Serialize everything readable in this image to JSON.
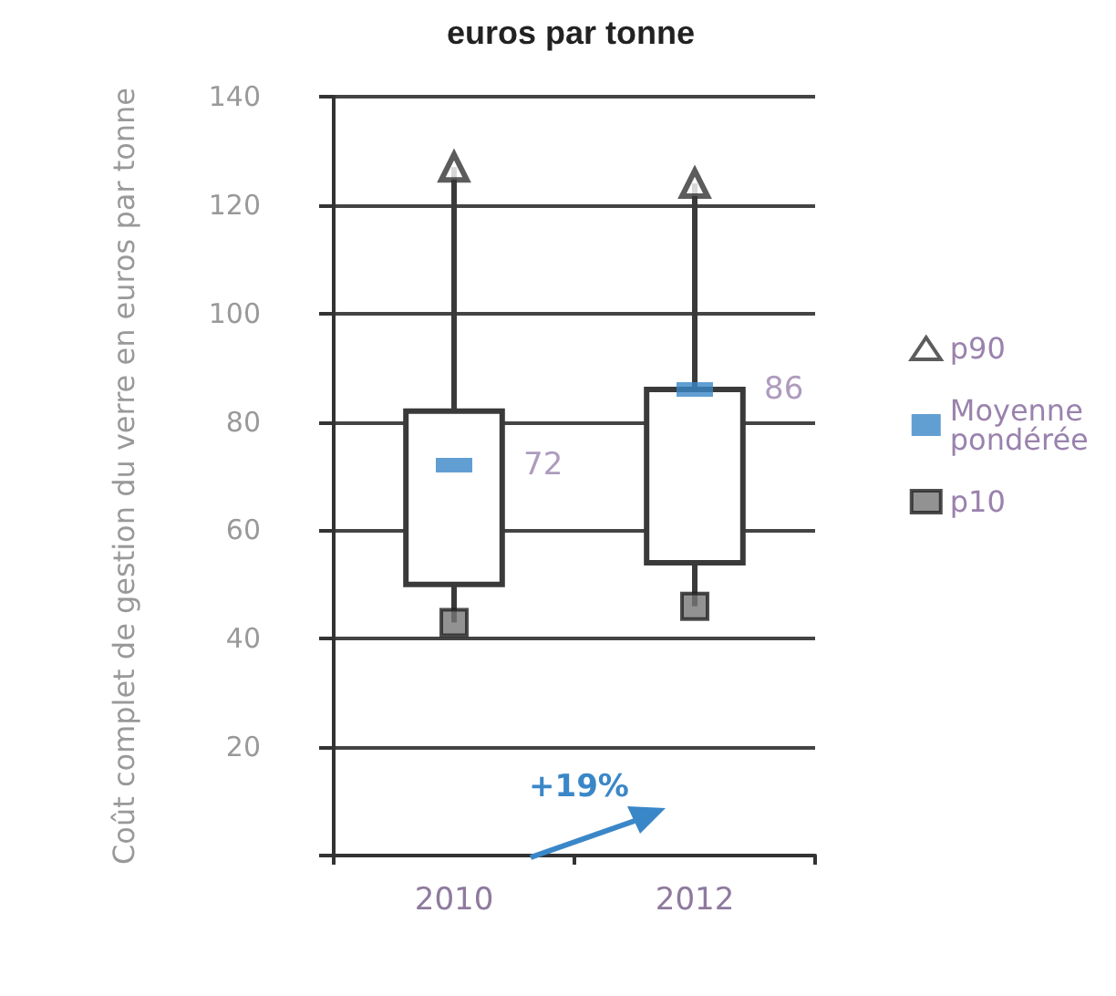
{
  "chart_data": {
    "type": "box",
    "title": "euros par tonne",
    "ylabel": "Coût complet de gestion du verre en euros par tonne",
    "categories": [
      "2010",
      "2012"
    ],
    "boxes": [
      {
        "low": 43,
        "q1": 50,
        "q3": 82,
        "high": 127
      },
      {
        "low": 46,
        "q1": 54,
        "q3": 86,
        "high": 124
      }
    ],
    "series": [
      {
        "name": "p90",
        "type": "scatter",
        "marker": "triangle",
        "color": "#333333",
        "values": [
          127,
          124
        ]
      },
      {
        "name": "Moyenne pondérée",
        "type": "scatter",
        "color": "#3a87c8",
        "values": [
          72,
          86
        ],
        "value_labels": [
          "72",
          "86"
        ]
      },
      {
        "name": "p10",
        "type": "scatter",
        "marker": "square",
        "color": "#777777",
        "values": [
          43,
          46
        ]
      }
    ],
    "ylim": [
      0,
      140
    ],
    "yticks": [
      {
        "value": 0,
        "label": null
      },
      20,
      40,
      60,
      80,
      100,
      120,
      140
    ],
    "grid": "y",
    "legend": "right",
    "annotations": [
      "+19%"
    ]
  }
}
